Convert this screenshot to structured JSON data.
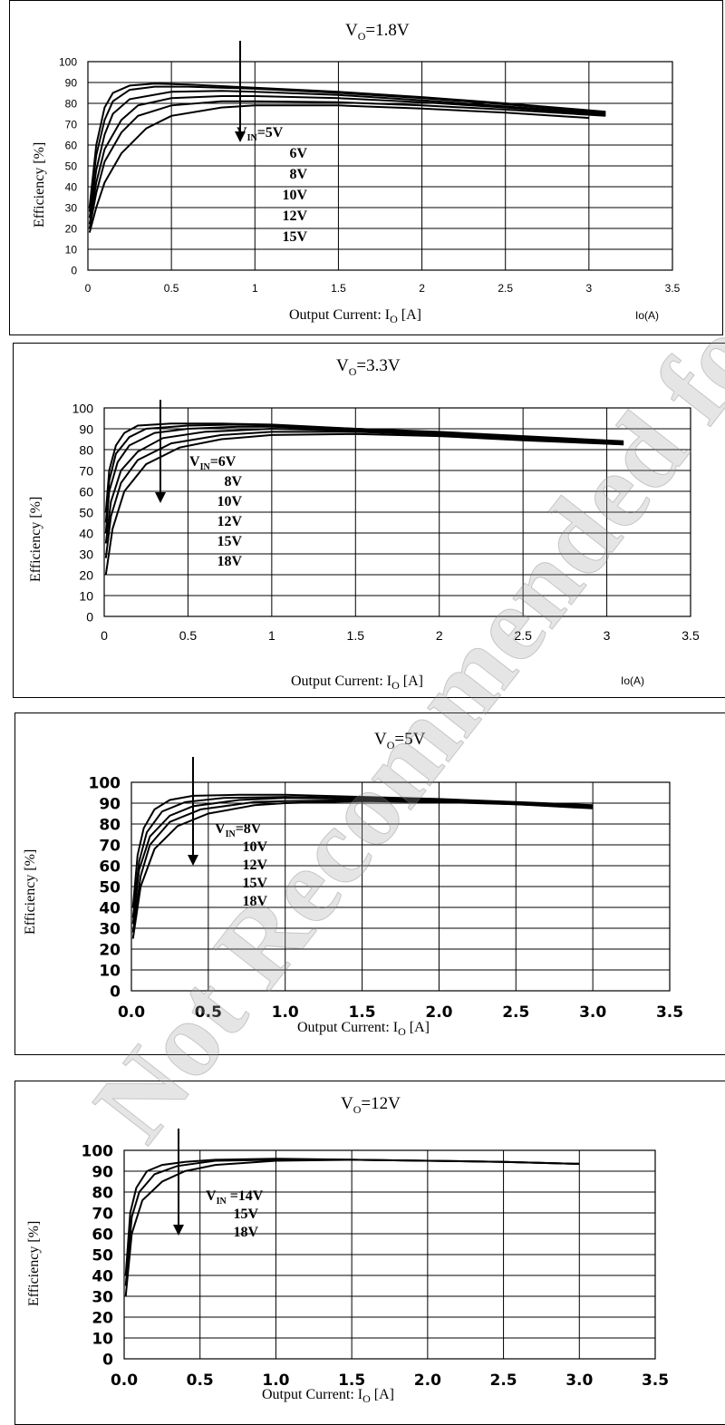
{
  "watermark": "Not Recommended for New Designs",
  "chart_data": [
    {
      "type": "line",
      "title_main": "V",
      "title_sub": "O",
      "title_tail": "=1.8V",
      "ylabel": "Efficiency [%]",
      "xlabel_main": "Output Current: I",
      "xlabel_sub": "O",
      "xlabel_tail": " [A]",
      "unit_label": "Io(A)",
      "xlim": [
        0,
        3.5
      ],
      "ylim": [
        0,
        100
      ],
      "xticks": [
        "0",
        "0.5",
        "1",
        "1.5",
        "2",
        "2.5",
        "3",
        "3.5"
      ],
      "yticks": [
        "0",
        "10",
        "20",
        "30",
        "40",
        "50",
        "60",
        "70",
        "80",
        "90",
        "100"
      ],
      "vin_prefix": "V",
      "vin_sub": "IN",
      "legend": [
        "=5V",
        "6V",
        "8V",
        "10V",
        "12V",
        "15V"
      ],
      "grid": true,
      "series": [
        {
          "points": [
            [
              0.01,
              30
            ],
            [
              0.05,
              60
            ],
            [
              0.1,
              78
            ],
            [
              0.15,
              85
            ],
            [
              0.25,
              88.5
            ],
            [
              0.4,
              89.5
            ],
            [
              0.6,
              89
            ],
            [
              1.0,
              87.5
            ],
            [
              1.5,
              85.5
            ],
            [
              2.0,
              83
            ],
            [
              2.5,
              80
            ],
            [
              3.1,
              76
            ]
          ]
        },
        {
          "points": [
            [
              0.01,
              28
            ],
            [
              0.05,
              55
            ],
            [
              0.1,
              72
            ],
            [
              0.15,
              81
            ],
            [
              0.25,
              86.5
            ],
            [
              0.4,
              88
            ],
            [
              0.6,
              88
            ],
            [
              1.0,
              87
            ],
            [
              1.5,
              85
            ],
            [
              2.0,
              82.5
            ],
            [
              2.5,
              79.5
            ],
            [
              3.1,
              75.5
            ]
          ]
        },
        {
          "points": [
            [
              0.01,
              25
            ],
            [
              0.05,
              48
            ],
            [
              0.1,
              65
            ],
            [
              0.15,
              75
            ],
            [
              0.25,
              82
            ],
            [
              0.5,
              85.5
            ],
            [
              0.8,
              86
            ],
            [
              1.0,
              85.5
            ],
            [
              1.5,
              84
            ],
            [
              2.0,
              81.5
            ],
            [
              2.5,
              78.5
            ],
            [
              3.1,
              75
            ]
          ]
        },
        {
          "points": [
            [
              0.01,
              22
            ],
            [
              0.05,
              42
            ],
            [
              0.1,
              58
            ],
            [
              0.2,
              72
            ],
            [
              0.3,
              79
            ],
            [
              0.5,
              82.5
            ],
            [
              0.8,
              83.5
            ],
            [
              1.0,
              83.5
            ],
            [
              1.5,
              82.5
            ],
            [
              2.0,
              80.5
            ],
            [
              2.5,
              78
            ],
            [
              3.1,
              74.5
            ]
          ]
        },
        {
          "points": [
            [
              0.01,
              20
            ],
            [
              0.05,
              37
            ],
            [
              0.1,
              52
            ],
            [
              0.2,
              66
            ],
            [
              0.3,
              74
            ],
            [
              0.5,
              79
            ],
            [
              0.8,
              81
            ],
            [
              1.0,
              81
            ],
            [
              1.5,
              80.5
            ],
            [
              2.0,
              79
            ],
            [
              2.5,
              77
            ],
            [
              3.1,
              74
            ]
          ]
        },
        {
          "points": [
            [
              0.01,
              18
            ],
            [
              0.05,
              30
            ],
            [
              0.1,
              42
            ],
            [
              0.2,
              56
            ],
            [
              0.35,
              68
            ],
            [
              0.5,
              74
            ],
            [
              0.8,
              78
            ],
            [
              1.0,
              79
            ],
            [
              1.5,
              79
            ],
            [
              2.0,
              77.5
            ],
            [
              2.5,
              75.5
            ],
            [
              3.0,
              73
            ]
          ]
        }
      ]
    },
    {
      "type": "line",
      "title_main": "V",
      "title_sub": "O",
      "title_tail": "=3.3V",
      "ylabel": "Efficiency [%]",
      "xlabel_main": "Output Current: I",
      "xlabel_sub": "O",
      "xlabel_tail": " [A]",
      "unit_label": "Io(A)",
      "xlim": [
        0,
        3.5
      ],
      "ylim": [
        0,
        100
      ],
      "xticks": [
        "0",
        "0.5",
        "1",
        "1.5",
        "2",
        "2.5",
        "3",
        "3.5"
      ],
      "yticks": [
        "0",
        "10",
        "20",
        "30",
        "40",
        "50",
        "60",
        "70",
        "80",
        "90",
        "100"
      ],
      "vin_prefix": "V",
      "vin_sub": "IN",
      "legend": [
        "=6V",
        "8V",
        "10V",
        "12V",
        "15V",
        "18V"
      ],
      "grid": true,
      "series": [
        {
          "points": [
            [
              0.01,
              50
            ],
            [
              0.03,
              70
            ],
            [
              0.07,
              82
            ],
            [
              0.12,
              88
            ],
            [
              0.2,
              91.5
            ],
            [
              0.4,
              92.5
            ],
            [
              0.7,
              92.5
            ],
            [
              1.0,
              92
            ],
            [
              1.5,
              90
            ],
            [
              2.0,
              88.5
            ],
            [
              2.5,
              86.5
            ],
            [
              3.1,
              84
            ]
          ]
        },
        {
          "points": [
            [
              0.01,
              45
            ],
            [
              0.03,
              65
            ],
            [
              0.07,
              78
            ],
            [
              0.15,
              86
            ],
            [
              0.25,
              90
            ],
            [
              0.5,
              91.5
            ],
            [
              0.8,
              92
            ],
            [
              1.0,
              91.5
            ],
            [
              1.5,
              90
            ],
            [
              2.0,
              88
            ],
            [
              2.5,
              86
            ],
            [
              3.1,
              83.5
            ]
          ]
        },
        {
          "points": [
            [
              0.01,
              40
            ],
            [
              0.03,
              60
            ],
            [
              0.08,
              74
            ],
            [
              0.15,
              82
            ],
            [
              0.3,
              88
            ],
            [
              0.5,
              90
            ],
            [
              0.8,
              91
            ],
            [
              1.0,
              91
            ],
            [
              1.5,
              89.5
            ],
            [
              2.0,
              88
            ],
            [
              2.5,
              86
            ],
            [
              3.1,
              83.5
            ]
          ]
        },
        {
          "points": [
            [
              0.01,
              35
            ],
            [
              0.04,
              55
            ],
            [
              0.1,
              70
            ],
            [
              0.2,
              79
            ],
            [
              0.35,
              85.5
            ],
            [
              0.6,
              88.5
            ],
            [
              1.0,
              90
            ],
            [
              1.5,
              89
            ],
            [
              2.0,
              87.5
            ],
            [
              2.5,
              85.5
            ],
            [
              3.1,
              83
            ]
          ]
        },
        {
          "points": [
            [
              0.01,
              28
            ],
            [
              0.04,
              48
            ],
            [
              0.1,
              64
            ],
            [
              0.2,
              75
            ],
            [
              0.4,
              83
            ],
            [
              0.7,
              87
            ],
            [
              1.0,
              88.5
            ],
            [
              1.5,
              88.5
            ],
            [
              2.0,
              87
            ],
            [
              2.5,
              85
            ],
            [
              3.1,
              82.5
            ]
          ]
        },
        {
          "points": [
            [
              0.01,
              20
            ],
            [
              0.05,
              42
            ],
            [
              0.12,
              60
            ],
            [
              0.25,
              73
            ],
            [
              0.45,
              81
            ],
            [
              0.7,
              85
            ],
            [
              1.0,
              87
            ],
            [
              1.5,
              87.5
            ],
            [
              2.0,
              86.5
            ],
            [
              2.5,
              84.5
            ],
            [
              3.1,
              82.5
            ]
          ]
        }
      ]
    },
    {
      "type": "line",
      "title_main": "V",
      "title_sub": "O",
      "title_tail": "=5V",
      "ylabel": "Efficiency [%]",
      "xlabel_main": "Output Current: I",
      "xlabel_sub": "O",
      "xlabel_tail": " [A]",
      "unit_label": "",
      "xlim": [
        0,
        3.5
      ],
      "ylim": [
        0,
        100
      ],
      "xticks": [
        "0.0",
        "0.5",
        "1.0",
        "1.5",
        "2.0",
        "2.5",
        "3.0",
        "3.5"
      ],
      "yticks": [
        "0",
        "10",
        "20",
        "30",
        "40",
        "50",
        "60",
        "70",
        "80",
        "90",
        "100"
      ],
      "vin_prefix": "V",
      "vin_sub": "IN",
      "legend": [
        "=8V",
        "10V",
        "12V",
        "15V",
        "18V"
      ],
      "grid": true,
      "series": [
        {
          "points": [
            [
              0.01,
              40
            ],
            [
              0.04,
              65
            ],
            [
              0.08,
              78
            ],
            [
              0.15,
              87
            ],
            [
              0.25,
              91.5
            ],
            [
              0.4,
              93.5
            ],
            [
              0.7,
              94
            ],
            [
              1.0,
              94
            ],
            [
              1.5,
              93
            ],
            [
              2.0,
              92
            ],
            [
              2.5,
              90.5
            ],
            [
              3.0,
              89
            ]
          ]
        },
        {
          "points": [
            [
              0.01,
              35
            ],
            [
              0.05,
              62
            ],
            [
              0.1,
              76
            ],
            [
              0.2,
              86
            ],
            [
              0.35,
              90.5
            ],
            [
              0.6,
              92.5
            ],
            [
              1.0,
              93
            ],
            [
              1.5,
              92.5
            ],
            [
              2.0,
              91.5
            ],
            [
              2.5,
              90
            ],
            [
              3.0,
              88.5
            ]
          ]
        },
        {
          "points": [
            [
              0.01,
              32
            ],
            [
              0.05,
              58
            ],
            [
              0.12,
              74
            ],
            [
              0.25,
              84
            ],
            [
              0.4,
              88.5
            ],
            [
              0.7,
              91.5
            ],
            [
              1.0,
              92.5
            ],
            [
              1.5,
              92
            ],
            [
              2.0,
              91
            ],
            [
              2.5,
              90
            ],
            [
              3.0,
              88
            ]
          ]
        },
        {
          "points": [
            [
              0.01,
              28
            ],
            [
              0.06,
              55
            ],
            [
              0.12,
              70
            ],
            [
              0.25,
              81
            ],
            [
              0.45,
              87
            ],
            [
              0.8,
              90.5
            ],
            [
              1.0,
              91
            ],
            [
              1.5,
              91.5
            ],
            [
              2.0,
              91
            ],
            [
              2.5,
              89.5
            ],
            [
              3.0,
              88
            ]
          ]
        },
        {
          "points": [
            [
              0.01,
              25
            ],
            [
              0.06,
              50
            ],
            [
              0.15,
              68
            ],
            [
              0.3,
              79
            ],
            [
              0.5,
              85
            ],
            [
              0.8,
              89
            ],
            [
              1.0,
              90
            ],
            [
              1.5,
              91
            ],
            [
              2.0,
              90.5
            ],
            [
              2.5,
              89.5
            ],
            [
              3.0,
              87.5
            ]
          ]
        }
      ]
    },
    {
      "type": "line",
      "title_main": "V",
      "title_sub": "O",
      "title_tail": "=12V",
      "ylabel": "Efficiency [%]",
      "xlabel_main": "Output Current: I",
      "xlabel_sub": "O",
      "xlabel_tail": " [A]",
      "unit_label": "",
      "xlim": [
        0,
        3.5
      ],
      "ylim": [
        0,
        100
      ],
      "xticks": [
        "0.0",
        "0.5",
        "1.0",
        "1.5",
        "2.0",
        "2.5",
        "3.0",
        "3.5"
      ],
      "yticks": [
        "0",
        "10",
        "20",
        "30",
        "40",
        "50",
        "60",
        "70",
        "80",
        "90",
        "100"
      ],
      "vin_prefix": "V",
      "vin_sub": "IN",
      "legend": [
        " =14V",
        "15V",
        "18V"
      ],
      "grid": true,
      "series": [
        {
          "points": [
            [
              0.01,
              40
            ],
            [
              0.04,
              70
            ],
            [
              0.08,
              82
            ],
            [
              0.15,
              90
            ],
            [
              0.25,
              93
            ],
            [
              0.4,
              94.5
            ],
            [
              0.6,
              95.5
            ],
            [
              1.0,
              96
            ],
            [
              1.5,
              95.5
            ],
            [
              2.0,
              95
            ],
            [
              2.5,
              94.5
            ],
            [
              3.0,
              93.5
            ]
          ]
        },
        {
          "points": [
            [
              0.01,
              35
            ],
            [
              0.05,
              68
            ],
            [
              0.1,
              80
            ],
            [
              0.2,
              88.5
            ],
            [
              0.35,
              92.5
            ],
            [
              0.6,
              95
            ],
            [
              1.0,
              95.5
            ],
            [
              1.5,
              95.5
            ],
            [
              2.0,
              95
            ],
            [
              2.5,
              94.5
            ],
            [
              3.0,
              93.5
            ]
          ]
        },
        {
          "points": [
            [
              0.01,
              30
            ],
            [
              0.05,
              60
            ],
            [
              0.12,
              76
            ],
            [
              0.25,
              85
            ],
            [
              0.4,
              90
            ],
            [
              0.6,
              93
            ],
            [
              1.0,
              95
            ],
            [
              1.5,
              95.5
            ],
            [
              2.0,
              95
            ],
            [
              2.5,
              94.5
            ],
            [
              3.0,
              93.5
            ]
          ]
        }
      ]
    }
  ]
}
